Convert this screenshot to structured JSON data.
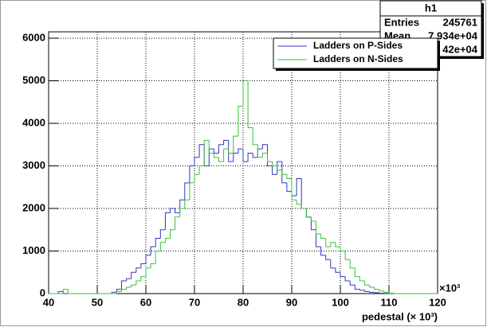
{
  "chart_data": {
    "type": "histogram",
    "xlabel": "pedestal (× 10³)",
    "x_multiplier": "×10³",
    "bins": [
      40,
      41,
      42,
      43,
      44,
      45,
      46,
      47,
      48,
      49,
      50,
      51,
      52,
      53,
      54,
      55,
      56,
      57,
      58,
      59,
      60,
      61,
      62,
      63,
      64,
      65,
      66,
      67,
      68,
      69,
      70,
      71,
      72,
      73,
      74,
      75,
      76,
      77,
      78,
      79,
      80,
      81,
      82,
      83,
      84,
      85,
      86,
      87,
      88,
      89,
      90,
      91,
      92,
      93,
      94,
      95,
      96,
      97,
      98,
      99,
      100,
      101,
      102,
      103,
      104,
      105,
      106,
      107,
      108,
      109,
      110,
      111,
      112,
      113,
      114,
      115,
      116,
      117,
      118,
      119,
      120
    ],
    "series": [
      {
        "name": "Ladders on P-Sides",
        "color": "#3434c4",
        "values": [
          0,
          0,
          50,
          0,
          0,
          0,
          0,
          0,
          0,
          0,
          0,
          0,
          0,
          30,
          100,
          300,
          350,
          500,
          600,
          700,
          900,
          1100,
          1300,
          1500,
          1900,
          2000,
          1900,
          2200,
          2600,
          3000,
          3200,
          3500,
          3000,
          3400,
          3300,
          3500,
          3600,
          3100,
          3300,
          3400,
          3100,
          3300,
          3200,
          3400,
          3500,
          3000,
          2800,
          3100,
          2600,
          2400,
          2300,
          2700,
          2000,
          1800,
          1500,
          1100,
          900,
          800,
          600,
          500,
          400,
          300,
          200,
          100,
          80,
          50,
          30,
          20,
          10,
          5,
          0,
          0,
          0,
          0,
          0,
          0,
          0,
          0,
          0,
          0
        ]
      },
      {
        "name": "Ladders on N-Sides",
        "color": "#34c434",
        "values": [
          0,
          0,
          0,
          100,
          0,
          0,
          0,
          0,
          0,
          0,
          0,
          0,
          0,
          0,
          50,
          100,
          150,
          200,
          300,
          400,
          600,
          700,
          1000,
          1200,
          1300,
          1500,
          1800,
          2000,
          2200,
          2600,
          2800,
          3000,
          3600,
          3300,
          3200,
          3100,
          3400,
          3300,
          3700,
          4400,
          5000,
          3900,
          3500,
          3200,
          3300,
          3100,
          3000,
          2900,
          2800,
          2700,
          2200,
          2100,
          2000,
          1800,
          1700,
          1400,
          1300,
          1100,
          1200,
          1100,
          1000,
          800,
          600,
          400,
          300,
          200,
          150,
          100,
          60,
          30,
          10,
          0,
          0,
          0,
          0,
          0,
          0,
          0,
          0,
          0
        ]
      }
    ],
    "xlim": [
      40,
      120
    ],
    "xticks": [
      40,
      50,
      60,
      70,
      80,
      90,
      100,
      110,
      120
    ],
    "ylim": [
      0,
      6150
    ],
    "yticks": [
      0,
      1000,
      2000,
      3000,
      4000,
      5000,
      6000
    ],
    "grid": true,
    "legend": "top-right",
    "stats": {
      "title": "h1",
      "rows": [
        [
          "Entries",
          "245761"
        ],
        [
          "Mean",
          "7.934e+04"
        ],
        [
          "",
          "42e+04"
        ]
      ]
    }
  }
}
